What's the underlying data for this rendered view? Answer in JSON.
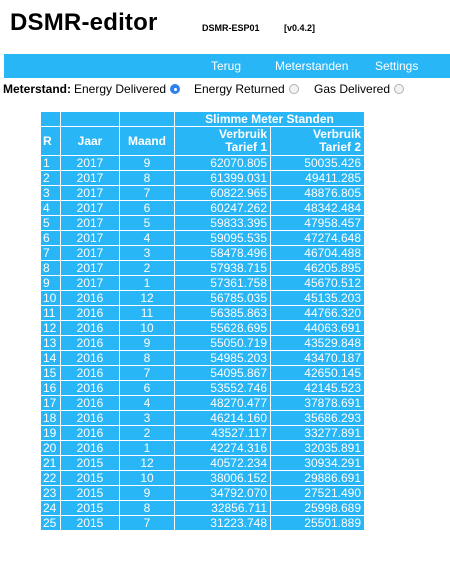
{
  "app": {
    "title": "DSMR-editor",
    "device": "DSMR-ESP01",
    "version": "[v0.4.2]"
  },
  "nav": {
    "back": "Terug",
    "meter_readings": "Meterstanden",
    "settings": "Settings"
  },
  "selector": {
    "label": "Meterstand:",
    "options": [
      {
        "label": "Energy Delivered",
        "checked": true
      },
      {
        "label": "Energy Returned",
        "checked": false
      },
      {
        "label": "Gas Delivered",
        "checked": false
      }
    ]
  },
  "table": {
    "group_header": "Slimme Meter Standen",
    "col_r": "R",
    "col_year": "Jaar",
    "col_month": "Maand",
    "col_t1_line1": "Verbruik",
    "col_t1_line2": "Tarief 1",
    "col_t2_line1": "Verbruik",
    "col_t2_line2": "Tarief 2",
    "rows": [
      {
        "r": "1",
        "year": "2017",
        "month": "9",
        "t1": "62070.805",
        "t2": "50035.426"
      },
      {
        "r": "2",
        "year": "2017",
        "month": "8",
        "t1": "61399.031",
        "t2": "49411.285"
      },
      {
        "r": "3",
        "year": "2017",
        "month": "7",
        "t1": "60822.965",
        "t2": "48876.805"
      },
      {
        "r": "4",
        "year": "2017",
        "month": "6",
        "t1": "60247.262",
        "t2": "48342.484"
      },
      {
        "r": "5",
        "year": "2017",
        "month": "5",
        "t1": "59833.395",
        "t2": "47958.457"
      },
      {
        "r": "6",
        "year": "2017",
        "month": "4",
        "t1": "59095.535",
        "t2": "47274.648"
      },
      {
        "r": "7",
        "year": "2017",
        "month": "3",
        "t1": "58478.496",
        "t2": "46704.488"
      },
      {
        "r": "8",
        "year": "2017",
        "month": "2",
        "t1": "57938.715",
        "t2": "46205.895"
      },
      {
        "r": "9",
        "year": "2017",
        "month": "1",
        "t1": "57361.758",
        "t2": "45670.512"
      },
      {
        "r": "10",
        "year": "2016",
        "month": "12",
        "t1": "56785.035",
        "t2": "45135.203"
      },
      {
        "r": "11",
        "year": "2016",
        "month": "11",
        "t1": "56385.863",
        "t2": "44766.320"
      },
      {
        "r": "12",
        "year": "2016",
        "month": "10",
        "t1": "55628.695",
        "t2": "44063.691"
      },
      {
        "r": "13",
        "year": "2016",
        "month": "9",
        "t1": "55050.719",
        "t2": "43529.848"
      },
      {
        "r": "14",
        "year": "2016",
        "month": "8",
        "t1": "54985.203",
        "t2": "43470.187"
      },
      {
        "r": "15",
        "year": "2016",
        "month": "7",
        "t1": "54095.867",
        "t2": "42650.145"
      },
      {
        "r": "16",
        "year": "2016",
        "month": "6",
        "t1": "53552.746",
        "t2": "42145.523"
      },
      {
        "r": "17",
        "year": "2016",
        "month": "4",
        "t1": "48270.477",
        "t2": "37878.691"
      },
      {
        "r": "18",
        "year": "2016",
        "month": "3",
        "t1": "46214.160",
        "t2": "35686.293"
      },
      {
        "r": "19",
        "year": "2016",
        "month": "2",
        "t1": "43527.117",
        "t2": "33277.891"
      },
      {
        "r": "20",
        "year": "2016",
        "month": "1",
        "t1": "42274.316",
        "t2": "32035.891"
      },
      {
        "r": "21",
        "year": "2015",
        "month": "12",
        "t1": "40572.234",
        "t2": "30934.291"
      },
      {
        "r": "22",
        "year": "2015",
        "month": "10",
        "t1": "38006.152",
        "t2": "29886.691"
      },
      {
        "r": "23",
        "year": "2015",
        "month": "9",
        "t1": "34792.070",
        "t2": "27521.490"
      },
      {
        "r": "24",
        "year": "2015",
        "month": "8",
        "t1": "32856.711",
        "t2": "25998.689"
      },
      {
        "r": "25",
        "year": "2015",
        "month": "7",
        "t1": "31223.748",
        "t2": "25501.889"
      }
    ]
  },
  "colors": {
    "accent": "#29b6f6",
    "radio_checked": "#2f80ed"
  }
}
